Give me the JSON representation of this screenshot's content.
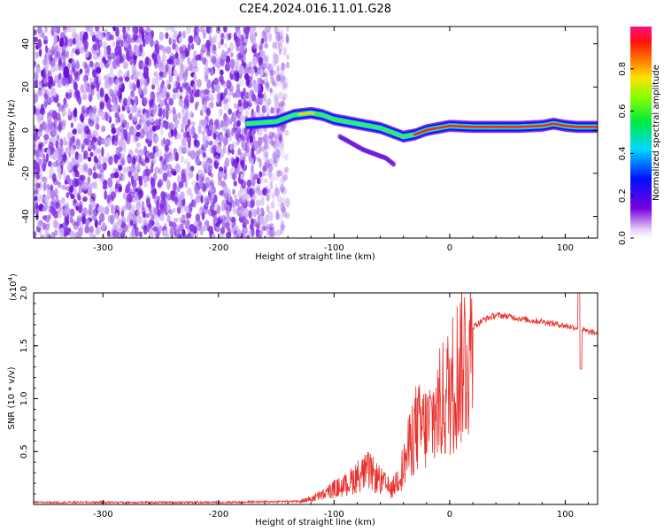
{
  "title": "C2E4.2024.016.11.01.G28",
  "chart_data": [
    {
      "type": "heatmap",
      "xlabel": "Height of straight line (km)",
      "ylabel": "Frequency (Hz)",
      "xlim": [
        -360,
        128
      ],
      "ylim": [
        -50,
        48
      ],
      "x_ticks": [
        -300,
        -200,
        -100,
        0,
        100
      ],
      "y_ticks": [
        -40,
        -20,
        0,
        20,
        40
      ],
      "colorbar": {
        "label": "Normalized spectral amplitude",
        "range": [
          0.0,
          1.0
        ],
        "ticks": [
          "0.0",
          "0.2",
          "0.4",
          "0.6",
          "0.8"
        ],
        "colormap": "rainbow (purple-blue-cyan-green-yellow-red-pink)"
      },
      "noise_region": {
        "x_range": [
          -360,
          -148
        ],
        "description": "scattered low-amplitude speckle across all frequencies"
      },
      "signal_trace": {
        "x": [
          -175,
          -150,
          -135,
          -120,
          -110,
          -100,
          -90,
          -80,
          -70,
          -60,
          -50,
          -40,
          -30,
          -20,
          -10,
          0,
          20,
          40,
          60,
          80,
          90,
          100,
          110,
          128
        ],
        "y": [
          3,
          4,
          7,
          8,
          7,
          5,
          4,
          3,
          2,
          1,
          -1,
          -3,
          -2,
          0,
          1,
          2,
          1.5,
          1.5,
          1.5,
          2,
          3,
          2,
          1.5,
          1.5
        ]
      },
      "secondary_trace": {
        "x": [
          -95,
          -85,
          -75,
          -65,
          -55,
          -48
        ],
        "y": [
          -3,
          -6,
          -9,
          -11,
          -13,
          -16
        ]
      }
    },
    {
      "type": "line",
      "xlabel": "Height of straight line (km)",
      "ylabel": "SNR (10 * v/v)",
      "y_multiplier_label": "(x10^4)",
      "xlim": [
        -360,
        128
      ],
      "ylim": [
        0,
        2.0
      ],
      "x_ticks": [
        -300,
        -200,
        -100,
        0,
        100
      ],
      "y_ticks": [
        "0.5",
        "1.0",
        "1.5",
        "2.0"
      ],
      "series": [
        {
          "color": "#e8302c",
          "x": [
            -360,
            -300,
            -200,
            -130,
            -120,
            -110,
            -100,
            -90,
            -80,
            -70,
            -60,
            -50,
            -40,
            -30,
            -20,
            -10,
            0,
            10,
            20,
            30,
            40,
            50,
            60,
            70,
            80,
            90,
            100,
            110,
            115,
            120,
            128
          ],
          "y": [
            0.02,
            0.02,
            0.02,
            0.03,
            0.06,
            0.1,
            0.16,
            0.2,
            0.3,
            0.35,
            0.25,
            0.15,
            0.4,
            0.8,
            0.8,
            1.0,
            1.2,
            1.5,
            1.68,
            1.75,
            1.79,
            1.78,
            1.76,
            1.74,
            1.73,
            1.71,
            1.69,
            1.67,
            1.65,
            1.63,
            1.62
          ]
        }
      ]
    }
  ]
}
